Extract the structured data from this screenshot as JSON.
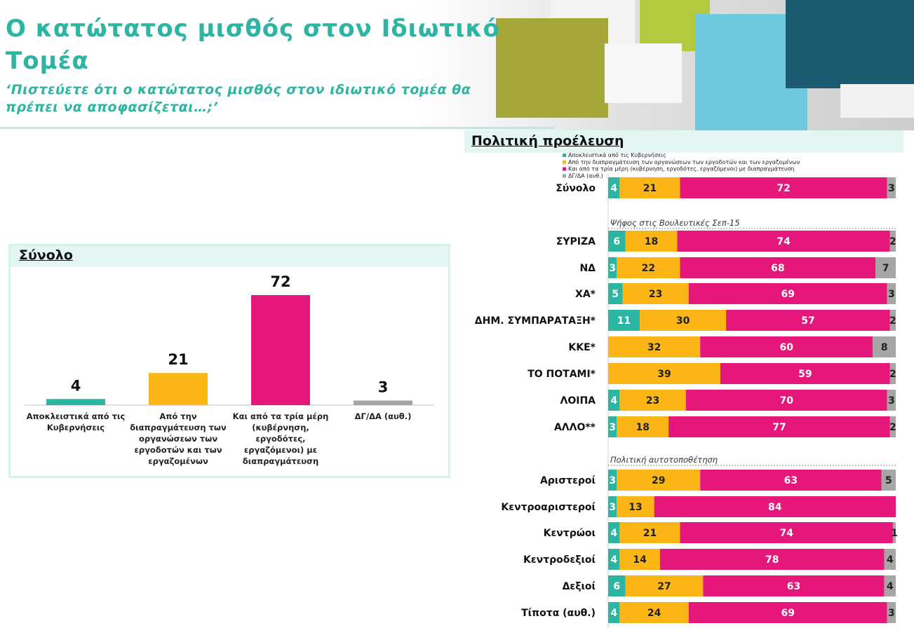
{
  "header": {
    "title": "Ο κατώτατος μισθός στον Ιδιωτικό Τομέα",
    "subtitle": "‘Πιστεύετε ότι ο κατώτατος μισθός στον ιδιωτικό τομέα θα πρέπει να αποφασίζεται…;’"
  },
  "colors": {
    "teal": "#2db5a3",
    "yellow": "#fbb615",
    "magenta": "#e6177a",
    "grey": "#a6a6a6"
  },
  "chart_data": [
    {
      "type": "bar",
      "title": "Σύνολο",
      "categories": [
        "Αποκλειστικά από τις Κυβερνήσεις",
        "Από την διαπραγμάτευση των οργανώσεων των εργοδοτών και των εργαζομένων",
        "Και από τα τρία μέρη (κυβέρνηση, εργοδότες, εργαζόμενοι) με διαπραγμάτευση",
        "ΔΓ/ΔΑ (αυθ.)"
      ],
      "category_lines": [
        [
          "Αποκλειστικά  από  τις",
          "Κυβερνήσεις"
        ],
        [
          "Από την",
          "διαπραγμάτευση  των",
          "οργανώσεων  των",
          "εργοδοτών  και των",
          "εργαζομένων"
        ],
        [
          "Και από τα τρία μέρη",
          "(κυβέρνηση,",
          "εργοδότες,",
          "εργαζόμενοι)  με",
          "διαπραγμάτευση"
        ],
        [
          "ΔΓ/ΔΑ (αυθ.)"
        ]
      ],
      "values": [
        4,
        21,
        72,
        3
      ],
      "colors": [
        "#2db5a3",
        "#fbb615",
        "#e6177a",
        "#a6a6a6"
      ],
      "xlabel": "",
      "ylabel": ""
    },
    {
      "type": "bar",
      "orientation": "horizontal",
      "stacked": true,
      "title": "Πολιτική προέλευση",
      "legend": [
        "Αποκλειστικά από τις Κυβερνήσεις",
        "Από την διαπραγμάτευση των οργανώσεων των εργοδοτών και των εργαζομένων",
        "Και από τα τρία μέρη (κυβέρνηση, εργοδότες, εργαζόμενοι) με διαπραγμάτευση",
        "ΔΓ/ΔΑ (αυθ.)"
      ],
      "legend_position": "top",
      "groups": [
        {
          "heading": "",
          "rows": [
            {
              "label": "Σύνολο",
              "values": [
                4,
                21,
                72,
                3
              ]
            }
          ]
        },
        {
          "heading": "Ψήφος στις Βουλευτικές Σεπ-15",
          "rows": [
            {
              "label": "ΣΥΡΙΖΑ",
              "values": [
                6,
                18,
                74,
                2
              ]
            },
            {
              "label": "ΝΔ",
              "values": [
                3,
                22,
                68,
                7
              ]
            },
            {
              "label": "ΧΑ*",
              "values": [
                5,
                23,
                69,
                3
              ]
            },
            {
              "label": "ΔΗΜ. ΣΥΜΠΑΡΑΤΑΞΗ*",
              "values": [
                11,
                30,
                57,
                2
              ]
            },
            {
              "label": "ΚΚΕ*",
              "values": [
                0,
                32,
                60,
                8
              ]
            },
            {
              "label": "ΤΟ ΠΟΤΑΜΙ*",
              "values": [
                0,
                39,
                59,
                2
              ]
            },
            {
              "label": "ΛΟΙΠΑ",
              "values": [
                4,
                23,
                70,
                3
              ]
            },
            {
              "label": "ΑΛΛΟ**",
              "values": [
                3,
                18,
                77,
                2
              ]
            }
          ]
        },
        {
          "heading": "Πολιτική αυτοτοποθέτηση",
          "rows": [
            {
              "label": "Αριστεροί",
              "values": [
                3,
                29,
                63,
                5
              ]
            },
            {
              "label": "Κεντροαριστεροί",
              "values": [
                3,
                13,
                84,
                0
              ]
            },
            {
              "label": "Κεντρώοι",
              "values": [
                4,
                21,
                74,
                1
              ]
            },
            {
              "label": "Κεντροδεξιοί",
              "values": [
                4,
                14,
                78,
                4
              ]
            },
            {
              "label": "Δεξιοί",
              "values": [
                6,
                27,
                63,
                4
              ]
            },
            {
              "label": "Τίποτα (αυθ.)",
              "values": [
                4,
                24,
                69,
                3
              ]
            }
          ]
        }
      ],
      "colors": [
        "#2db5a3",
        "#fbb615",
        "#e6177a",
        "#a6a6a6"
      ],
      "xlim": [
        0,
        100
      ]
    }
  ]
}
